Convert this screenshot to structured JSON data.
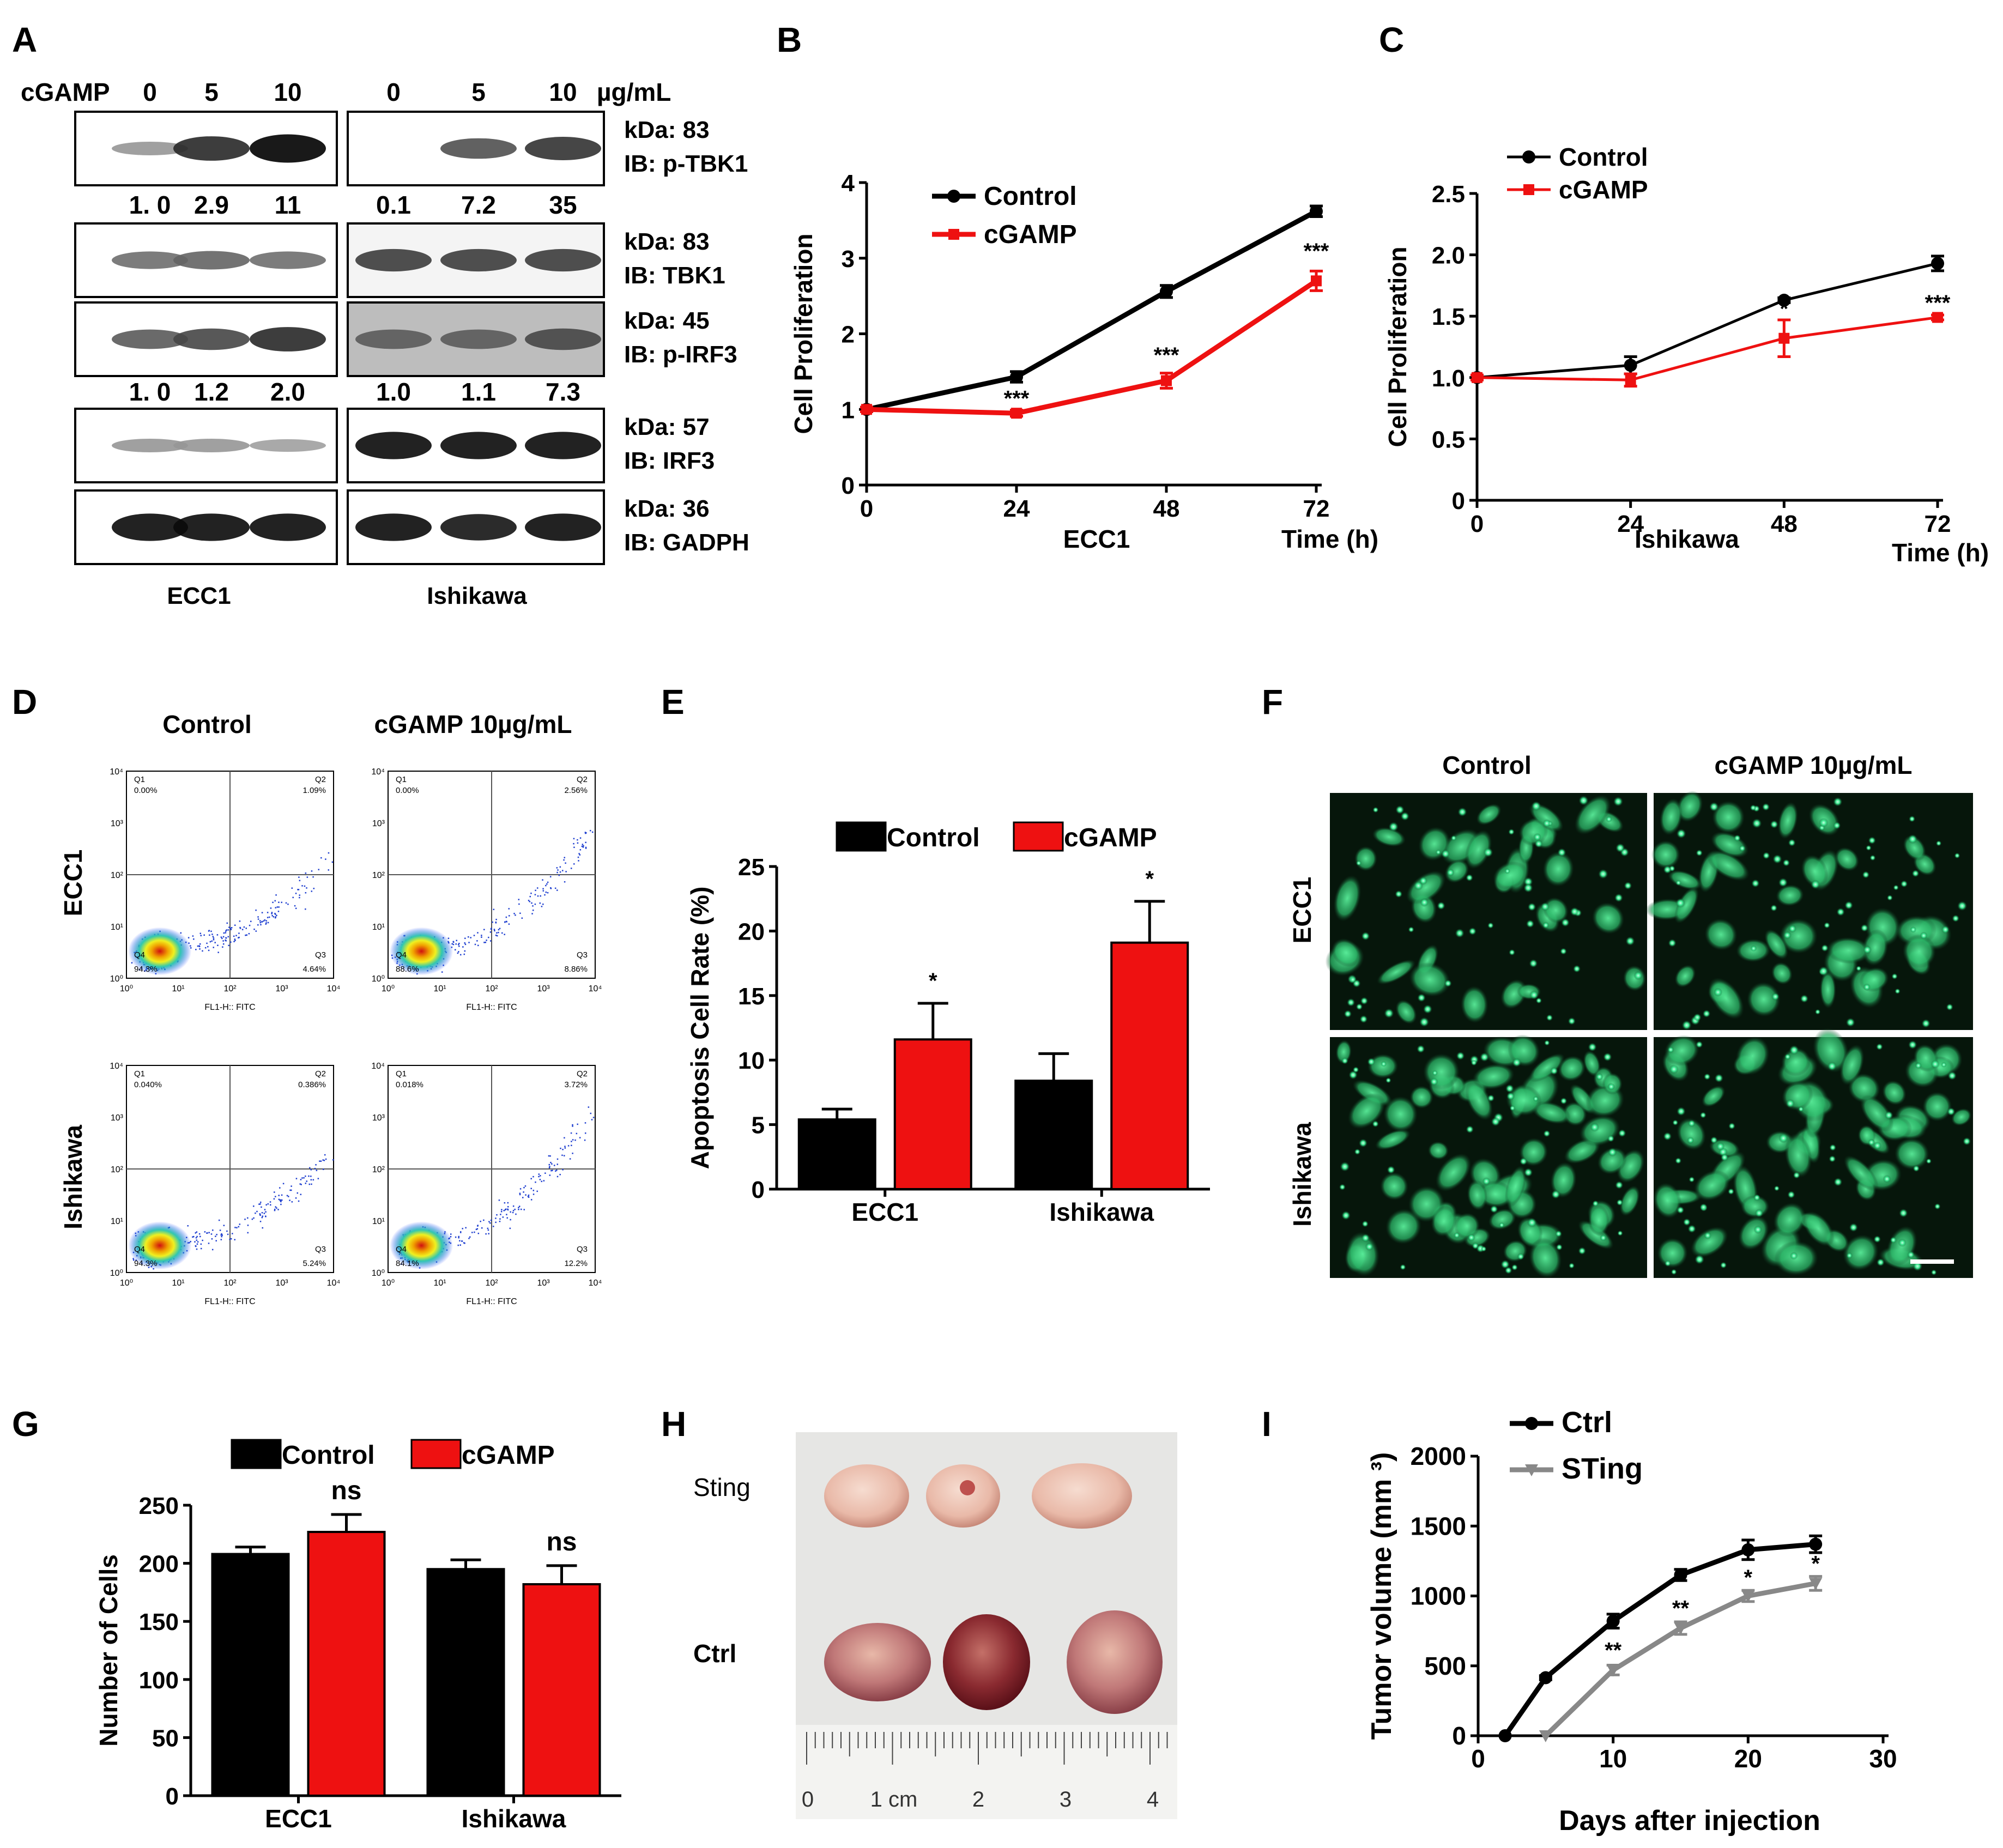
{
  "panel_letters": [
    "A",
    "B",
    "C",
    "D",
    "E",
    "F",
    "G",
    "H",
    "I"
  ],
  "panelA": {
    "treatment_label": "cGAMP",
    "doses": [
      "0",
      "5",
      "10",
      "0",
      "5",
      "10"
    ],
    "unit": "µg/mL",
    "blots": [
      {
        "kda": "kDa: 83",
        "ib": "IB: p-TBK1",
        "quant": [
          "1. 0",
          "2.9",
          "11",
          "0.1",
          "7.2",
          "35"
        ]
      },
      {
        "kda": "kDa: 83",
        "ib": "IB: TBK1",
        "quant": []
      },
      {
        "kda": "kDa: 45",
        "ib": "IB: p-IRF3",
        "quant": [
          "1. 0",
          "1.2",
          "2.0",
          "1.0",
          "1.1",
          "7.3"
        ]
      },
      {
        "kda": "kDa: 57",
        "ib": "IB: IRF3",
        "quant": []
      },
      {
        "kda": "kDa: 36",
        "ib": "IB: GADPH",
        "quant": []
      }
    ],
    "cell_lines": [
      "ECC1",
      "Ishikawa"
    ]
  },
  "panelD": {
    "col_labels": [
      "Control",
      "cGAMP 10µg/mL"
    ],
    "row_labels": [
      "ECC1",
      "Ishikawa"
    ],
    "axis_label": "FL1-H:: FITC",
    "tick_labels": [
      "10⁰",
      "10¹",
      "10²",
      "10³",
      "10⁴"
    ],
    "plots": [
      {
        "q1": "Q1",
        "q1v": "0.00%",
        "q2": "Q2",
        "q2v": "1.09%",
        "q3": "Q3",
        "q3v": "4.64%",
        "q4": "Q4",
        "q4v": "94.3%"
      },
      {
        "q1": "Q1",
        "q1v": "0.00%",
        "q2": "Q2",
        "q2v": "2.56%",
        "q3": "Q3",
        "q3v": "8.86%",
        "q4": "Q4",
        "q4v": "88.6%"
      },
      {
        "q1": "Q1",
        "q1v": "0.040%",
        "q2": "Q2",
        "q2v": "0.386%",
        "q3": "Q3",
        "q3v": "5.24%",
        "q4": "Q4",
        "q4v": "94.3%"
      },
      {
        "q1": "Q1",
        "q1v": "0.018%",
        "q2": "Q2",
        "q2v": "3.72%",
        "q3": "Q3",
        "q3v": "12.2%",
        "q4": "Q4",
        "q4v": "84.1%"
      }
    ]
  },
  "panelF": {
    "col_labels": [
      "Control",
      "cGAMP 10µg/mL"
    ],
    "row_labels": [
      "ECC1",
      "Ishikawa"
    ]
  },
  "panelH": {
    "row_labels": [
      "Sting",
      "Ctrl"
    ],
    "ruler_labels": [
      "0",
      "1 cm",
      "2",
      "3",
      "4"
    ]
  },
  "colors": {
    "control": "#000000",
    "cgamp": "#ee1111",
    "sting": "#888888"
  },
  "chart_data": [
    {
      "id": "B",
      "type": "line",
      "xlabel": "Time (h)",
      "ylabel": "Cell Proliferation",
      "subtitle": "ECC1",
      "x": [
        0,
        24,
        48,
        72
      ],
      "xlim": [
        0,
        72
      ],
      "ylim": [
        0,
        4
      ],
      "yticks": [
        0,
        1,
        2,
        3,
        4
      ],
      "legend": "top-left",
      "series": [
        {
          "name": "Control",
          "color": "#000000",
          "values": [
            1.0,
            1.43,
            2.56,
            3.62
          ],
          "err": [
            0.03,
            0.07,
            0.08,
            0.07
          ]
        },
        {
          "name": "cGAMP",
          "color": "#ee1111",
          "values": [
            1.0,
            0.95,
            1.38,
            2.7
          ],
          "err": [
            0.03,
            0.04,
            0.1,
            0.13
          ]
        }
      ],
      "annotations": [
        {
          "x": 24,
          "y": 1.05,
          "text": "***"
        },
        {
          "x": 48,
          "y": 1.62,
          "text": "***"
        },
        {
          "x": 72,
          "y": 3.0,
          "text": "***"
        }
      ]
    },
    {
      "id": "C",
      "type": "line",
      "xlabel": "Time (h)",
      "ylabel": "Cell Proliferation",
      "subtitle": "Ishikawa",
      "x": [
        0,
        24,
        48,
        72
      ],
      "xlim": [
        0,
        72
      ],
      "ylim": [
        0,
        2.5
      ],
      "yticks": [
        0,
        0.5,
        1.0,
        1.5,
        2.0,
        2.5
      ],
      "ytick_labels": [
        "0",
        "0.5",
        "1.0",
        "1.5",
        "2.0",
        "2.5"
      ],
      "legend": "top-left",
      "series": [
        {
          "name": "Control",
          "color": "#000000",
          "values": [
            1.0,
            1.1,
            1.63,
            1.93
          ],
          "err": [
            0.02,
            0.07,
            0.02,
            0.06
          ]
        },
        {
          "name": "cGAMP",
          "color": "#ee1111",
          "values": [
            1.0,
            0.98,
            1.32,
            1.49
          ],
          "err": [
            0.02,
            0.05,
            0.15,
            0.02
          ]
        }
      ],
      "annotations": [
        {
          "x": 48,
          "y": 1.5,
          "text": "*"
        },
        {
          "x": 72,
          "y": 1.55,
          "text": "***"
        }
      ]
    },
    {
      "id": "E",
      "type": "bar",
      "ylabel": "Apoptosis Cell Rate (%)",
      "categories": [
        "ECC1",
        "Ishikawa"
      ],
      "ylim": [
        0,
        25
      ],
      "yticks": [
        0,
        5,
        10,
        15,
        20,
        25
      ],
      "legend": "top",
      "series": [
        {
          "name": "Control",
          "color": "#000000",
          "values": [
            5.4,
            8.4
          ],
          "err": [
            0.8,
            2.1
          ]
        },
        {
          "name": "cGAMP",
          "color": "#ee1111",
          "values": [
            11.6,
            19.1
          ],
          "err": [
            2.8,
            3.2
          ]
        }
      ],
      "annotations": [
        {
          "cat": 0,
          "series": 1,
          "text": "*"
        },
        {
          "cat": 1,
          "series": 1,
          "text": "*"
        }
      ]
    },
    {
      "id": "G",
      "type": "bar",
      "ylabel": "Number of Cells",
      "categories": [
        "ECC1",
        "Ishikawa"
      ],
      "ylim": [
        0,
        250
      ],
      "yticks": [
        0,
        50,
        100,
        150,
        200,
        250
      ],
      "legend": "top",
      "series": [
        {
          "name": "Control",
          "color": "#000000",
          "values": [
            208,
            195
          ],
          "err": [
            6,
            8
          ]
        },
        {
          "name": "cGAMP",
          "color": "#ee1111",
          "values": [
            227,
            182
          ],
          "err": [
            15,
            16
          ]
        }
      ],
      "annotations": [
        {
          "cat": 0,
          "series": 1,
          "text": "ns"
        },
        {
          "cat": 1,
          "series": 1,
          "text": "ns"
        }
      ]
    },
    {
      "id": "I",
      "type": "line",
      "xlabel": "Days after injection",
      "ylabel": "Tumor volume (mm ³)",
      "xlim": [
        0,
        30
      ],
      "xticks": [
        0,
        10,
        20,
        30
      ],
      "ylim": [
        0,
        2000
      ],
      "yticks": [
        0,
        500,
        1000,
        1500,
        2000
      ],
      "legend": "top-left",
      "series": [
        {
          "name": "Ctrl",
          "color": "#000000",
          "x": [
            2,
            5,
            10,
            15,
            20,
            25
          ],
          "values": [
            0,
            415,
            820,
            1150,
            1330,
            1370
          ],
          "err": [
            0,
            15,
            50,
            40,
            70,
            60
          ]
        },
        {
          "name": "STing",
          "color": "#888888",
          "x": [
            5,
            10,
            15,
            20,
            25
          ],
          "values": [
            0,
            470,
            770,
            1000,
            1090
          ],
          "err": [
            0,
            35,
            45,
            40,
            50
          ]
        }
      ],
      "annotations": [
        {
          "x": 10,
          "y": 560,
          "text": "**"
        },
        {
          "x": 15,
          "y": 860,
          "text": "**"
        },
        {
          "x": 20,
          "y": 1080,
          "text": "*"
        },
        {
          "x": 25,
          "y": 1180,
          "text": "*"
        }
      ]
    }
  ]
}
